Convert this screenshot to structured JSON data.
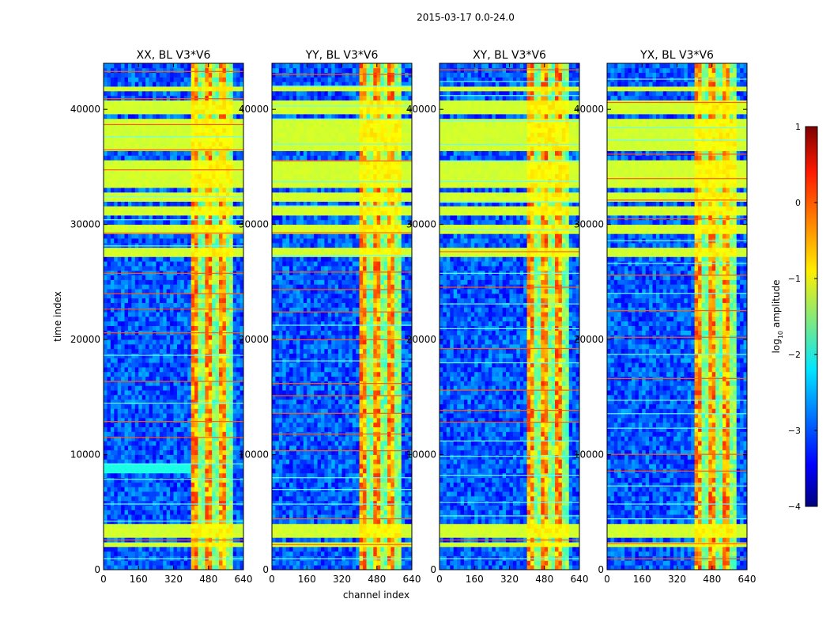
{
  "chart_data": {
    "type": "heatmap",
    "suptitle": "2015-03-17 0.0-24.0",
    "xlabel": "channel index",
    "ylabel": "time index",
    "xlim": [
      0,
      640
    ],
    "ylim": [
      0,
      44000
    ],
    "x_ticks": [
      0,
      160,
      320,
      480,
      640
    ],
    "y_ticks": [
      0,
      10000,
      20000,
      30000,
      40000
    ],
    "panels": [
      {
        "title": "XX, BL V3*V6",
        "pol": "XX"
      },
      {
        "title": "YY, BL V3*V6",
        "pol": "YY"
      },
      {
        "title": "XY, BL V3*V6",
        "pol": "XY"
      },
      {
        "title": "YX, BL V3*V6",
        "pol": "YX"
      }
    ],
    "colorbar": {
      "label_main": "log",
      "label_sub": "10",
      "label_rest": " amplitude",
      "range": [
        -4,
        1
      ],
      "ticks": [
        "−4",
        "−3",
        "−2",
        "−1",
        "0",
        "1"
      ],
      "colormap": "jet"
    },
    "flagged_time_bands": [
      [
        1800,
        2100
      ],
      [
        2500,
        3800
      ],
      [
        27000,
        28000
      ],
      [
        29000,
        30000
      ],
      [
        30800,
        31300
      ],
      [
        31700,
        32500
      ],
      [
        33000,
        35300
      ],
      [
        36200,
        39200
      ],
      [
        39500,
        40500
      ],
      [
        41400,
        41700
      ]
    ],
    "bright_channel_range": [
      400,
      580
    ],
    "colors": {
      "flag_fill": "#99ff55",
      "background_low": "#1540f0",
      "rfi_high": "#ff5a14"
    }
  }
}
